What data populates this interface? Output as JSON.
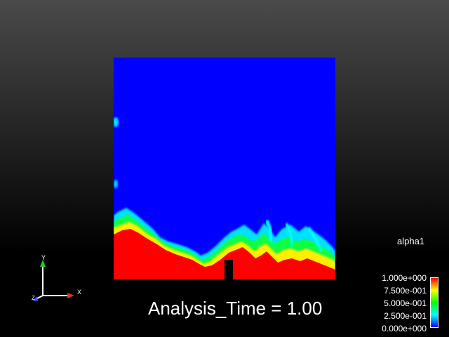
{
  "scene": {
    "field_name": "alpha1",
    "time_label": "Analysis_Time = 1.00",
    "colormap": [
      "#0000ff",
      "#00ffff",
      "#00ff00",
      "#ffff00",
      "#ff0000"
    ]
  },
  "legend": {
    "title": "alpha1",
    "ticks": [
      "1.000e+000",
      "7.500e-001",
      "5.000e-001",
      "2.500e-001",
      "0.000e+000"
    ]
  },
  "axes": {
    "x_label": "X",
    "y_label": "Y",
    "z_label": "Z"
  }
}
